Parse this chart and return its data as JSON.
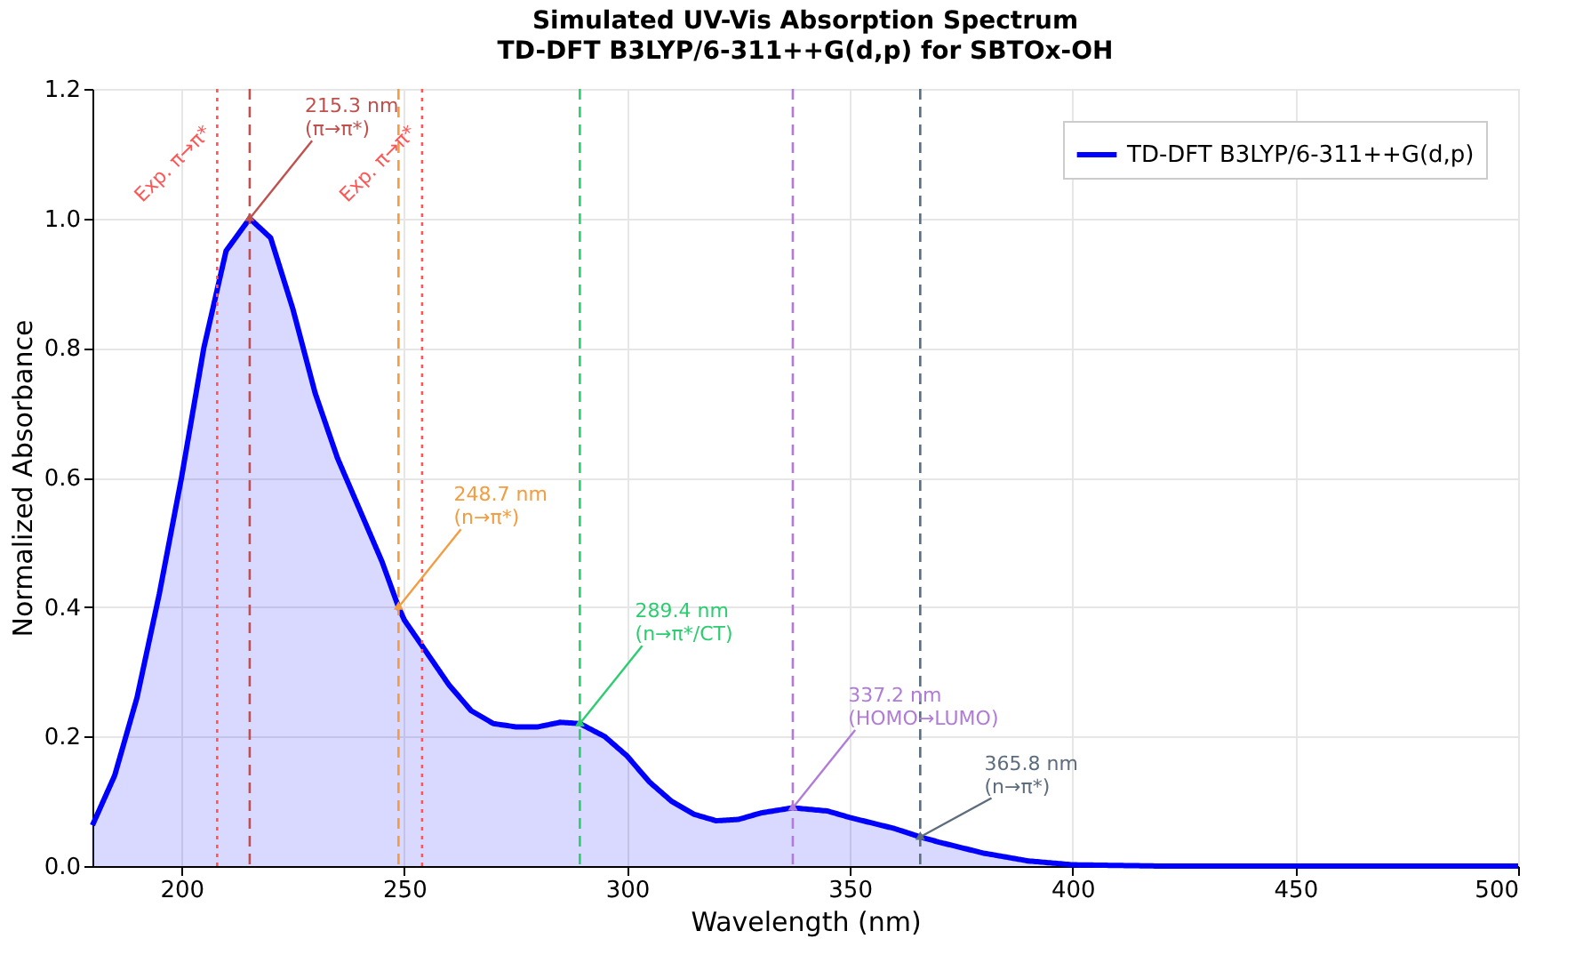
{
  "chart_data": {
    "type": "area",
    "title": "Simulated UV-Vis Absorption Spectrum",
    "subtitle": "TD-DFT B3LYP/6-311++G(d,p) for SBTOx-OH",
    "xlabel": "Wavelength (nm)",
    "ylabel": "Normalized Absorbance",
    "x": [
      180,
      185,
      190,
      195,
      200,
      205,
      210,
      215.3,
      220,
      225,
      230,
      235,
      240,
      245,
      248.7,
      250,
      255,
      260,
      265,
      270,
      275,
      280,
      285,
      289.4,
      295,
      300,
      305,
      310,
      315,
      320,
      325,
      330,
      337.2,
      345,
      350,
      360,
      365.8,
      370,
      380,
      390,
      400,
      420,
      450,
      500
    ],
    "series": [
      {
        "name": "TD-DFT B3LYP/6-311++G(d,p)",
        "color": "#0000ff",
        "values": [
          0.063,
          0.14,
          0.26,
          0.42,
          0.6,
          0.8,
          0.95,
          1.0,
          0.97,
          0.86,
          0.73,
          0.63,
          0.55,
          0.47,
          0.4,
          0.38,
          0.33,
          0.28,
          0.24,
          0.22,
          0.215,
          0.215,
          0.222,
          0.22,
          0.2,
          0.17,
          0.13,
          0.1,
          0.08,
          0.07,
          0.072,
          0.082,
          0.09,
          0.085,
          0.075,
          0.058,
          0.045,
          0.037,
          0.02,
          0.008,
          0.002,
          0,
          0,
          0
        ]
      }
    ],
    "xlim": [
      180,
      500
    ],
    "xticks": [
      200,
      250,
      300,
      350,
      400,
      450,
      500
    ],
    "ylim": [
      0,
      1.2
    ],
    "yticks": [
      {
        "value": 0,
        "label": "0.0"
      },
      0.2,
      0.4,
      0.6,
      0.8,
      {
        "value": 1,
        "label": "1.0"
      },
      {
        "value": 1.2,
        "label": "1.2"
      }
    ],
    "grid": true,
    "legend": "top right",
    "ref_lines": [
      {
        "axis": "x",
        "value": 215.3,
        "color": "#c0504d",
        "line_style": "dashed"
      },
      {
        "axis": "x",
        "value": 248.7,
        "color": "#f39c40",
        "line_style": "dashed"
      },
      {
        "axis": "x",
        "value": 289.4,
        "color": "#2ecc71",
        "line_style": "dashed"
      },
      {
        "axis": "x",
        "value": 337.2,
        "color": "#b07cd8",
        "line_style": "dashed"
      },
      {
        "axis": "x",
        "value": 365.8,
        "color": "#5d6d7e",
        "line_style": "dashed"
      },
      {
        "axis": "x",
        "value": 208,
        "label": "Exp. π→π*",
        "color": "#ff5555",
        "line_style": "dotted"
      },
      {
        "axis": "x",
        "value": 254,
        "label": "Exp. π→π*",
        "color": "#ff5555",
        "line_style": "dotted"
      }
    ],
    "annotations": [
      {
        "text": "215.3 nm\n(π→π*)",
        "x": 215.3,
        "y": 1.0
      },
      {
        "text": "248.7 nm\n(n→π*)",
        "x": 248.7,
        "y": 0.4
      },
      {
        "text": "289.4 nm\n(n→π*/CT)",
        "x": 289.4,
        "y": 0.22
      },
      {
        "text": "337.2 nm\n(HOMO→LUMO)",
        "x": 337.2,
        "y": 0.09
      },
      {
        "text": "365.8 nm\n(n→π*)",
        "x": 365.8,
        "y": 0.045
      }
    ]
  }
}
